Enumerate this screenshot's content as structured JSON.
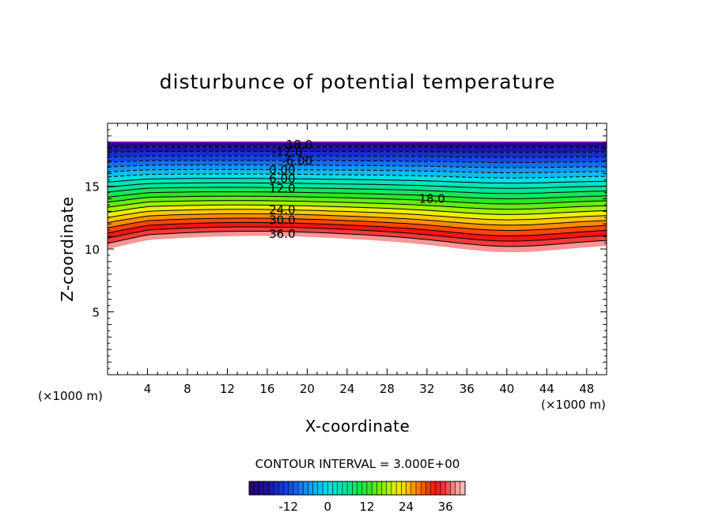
{
  "chart_data": {
    "type": "contour",
    "title": "disturbunce of potential temperature",
    "xlabel": "X-coordinate",
    "ylabel": "Z-coordinate",
    "x_unit": "(×1000 m)",
    "y_unit": "(×1000 m)",
    "xlim": [
      0,
      50
    ],
    "ylim": [
      0,
      20
    ],
    "x_ticks": [
      4,
      8,
      12,
      16,
      20,
      24,
      28,
      32,
      36,
      40,
      44,
      48
    ],
    "y_ticks": [
      5,
      10,
      15
    ],
    "contour_interval_text": "CONTOUR INTERVAL = 3.000E+00",
    "contour_interval": 3.0,
    "levels_min": -24,
    "levels_max": 39,
    "field_top": 18.5,
    "contour_labels": [
      {
        "text": "-18.0",
        "x": 19,
        "z": 18.3
      },
      {
        "text": "-12.0",
        "x": 18,
        "z": 17.7
      },
      {
        "text": "-6.00",
        "x": 19,
        "z": 17.0
      },
      {
        "text": "0.00",
        "x": 17.5,
        "z": 16.3
      },
      {
        "text": "6.00",
        "x": 17.5,
        "z": 15.6
      },
      {
        "text": "12.0",
        "x": 17.5,
        "z": 14.8
      },
      {
        "text": "18.0",
        "x": 32.5,
        "z": 14.0
      },
      {
        "text": "24.0",
        "x": 17.5,
        "z": 13.1
      },
      {
        "text": "30.0",
        "x": 17.5,
        "z": 12.3
      },
      {
        "text": "36.0",
        "x": 17.5,
        "z": 11.2
      }
    ],
    "colorbar": {
      "ticks": [
        -12,
        0,
        12,
        24,
        36
      ],
      "tick_labels": [
        "-12",
        "0",
        "12",
        "24",
        "36"
      ],
      "min": -24,
      "max": 42
    },
    "colors": {
      "low": "#2a0066",
      "mid_cyan": "#00e0e0",
      "mid_green": "#30e000",
      "mid_yellow": "#f0f000",
      "high_red": "#ff1010",
      "top_pink": "#ffb0b0"
    }
  }
}
